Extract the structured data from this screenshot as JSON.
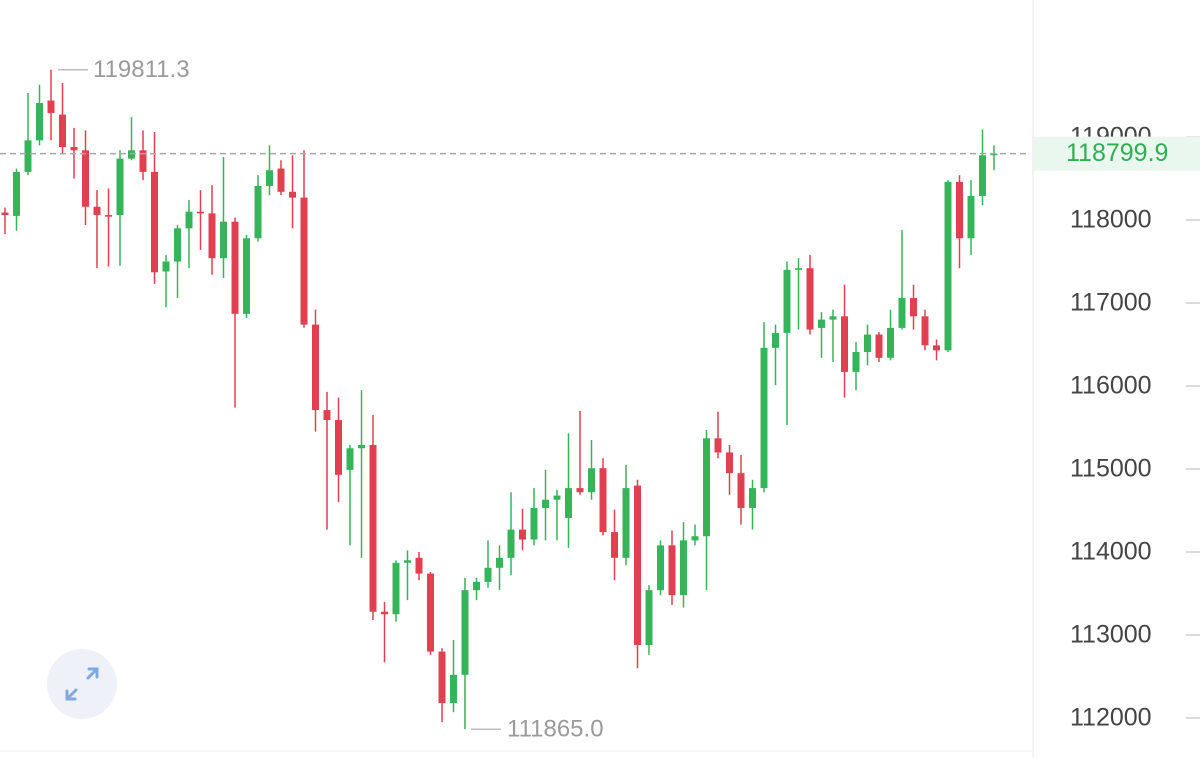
{
  "chart_data": {
    "type": "candlestick",
    "up_color": "#35b45a",
    "down_color": "#e0404f",
    "ylim": [
      111518,
      120651
    ],
    "yticks": [
      112000,
      113000,
      114000,
      115000,
      116000,
      117000,
      118000,
      119000
    ],
    "open": [
      118090,
      118050,
      118580,
      118960,
      119440,
      119270,
      118880,
      118840,
      118160,
      118060,
      118060,
      118740,
      118840,
      118580,
      117380,
      117500,
      117900,
      118100,
      118080,
      117540,
      117980,
      116870,
      117780,
      118410,
      118620,
      118340,
      118270,
      116740,
      115710,
      115590,
      114990,
      115250,
      115290,
      113280,
      113250,
      113870,
      113930,
      113740,
      112800,
      112180,
      112520,
      113540,
      113640,
      113810,
      113930,
      114270,
      114150,
      114530,
      114630,
      114410,
      114770,
      114720,
      115010,
      114240,
      113930,
      114800,
      112880,
      113540,
      114080,
      113480,
      114140,
      114190,
      115370,
      115200,
      114950,
      114530,
      114770,
      116460,
      116640,
      117400,
      117420,
      116700,
      116800,
      116840,
      116170,
      116410,
      116620,
      116340,
      116700,
      117060,
      116840,
      116490,
      116430,
      118460,
      117780,
      118290,
      118780
    ],
    "high": [
      118150,
      118620,
      119530,
      119630,
      119811.3,
      119650,
      119110,
      119080,
      118360,
      118380,
      118840,
      119240,
      119080,
      119060,
      117580,
      117940,
      118240,
      118360,
      118420,
      118760,
      118030,
      117820,
      118540,
      118900,
      118720,
      118780,
      118840,
      116920,
      115930,
      115860,
      115290,
      115950,
      115650,
      113400,
      113900,
      114020,
      114000,
      113760,
      112840,
      112940,
      113690,
      113690,
      114140,
      114080,
      114720,
      114520,
      114770,
      114990,
      114750,
      115430,
      115700,
      115350,
      115130,
      114510,
      115050,
      114870,
      113600,
      114140,
      114260,
      114360,
      114330,
      115470,
      115690,
      115290,
      115170,
      114870,
      116770,
      116740,
      117500,
      117540,
      117580,
      116890,
      116920,
      117220,
      116530,
      116740,
      116650,
      116920,
      117880,
      117220,
      116920,
      116560,
      118480,
      118540,
      118480,
      119090,
      118900
    ],
    "low": [
      117830,
      117870,
      118540,
      118900,
      118960,
      118790,
      118500,
      117940,
      117420,
      117440,
      117450,
      118720,
      118480,
      117230,
      116950,
      117060,
      117420,
      117640,
      117340,
      117300,
      115740,
      116820,
      117740,
      118300,
      118300,
      117900,
      116700,
      115450,
      114270,
      114600,
      114080,
      113930,
      113180,
      112670,
      113160,
      113420,
      113660,
      112760,
      111950,
      112070,
      111865,
      113420,
      113570,
      113540,
      113720,
      114020,
      114080,
      114140,
      114140,
      114050,
      114690,
      114630,
      114200,
      113660,
      113840,
      112600,
      112760,
      113480,
      113360,
      113330,
      114080,
      113540,
      115130,
      114690,
      114330,
      114270,
      114720,
      116010,
      115530,
      116680,
      116620,
      116340,
      116290,
      115860,
      115950,
      116250,
      116290,
      116310,
      116680,
      116680,
      116430,
      116310,
      116410,
      117420,
      117580,
      118180,
      118600
    ],
    "close": [
      118060,
      118580,
      118960,
      119410,
      119290,
      118880,
      118840,
      118160,
      118060,
      118040,
      118740,
      118840,
      118580,
      117370,
      117500,
      117900,
      118100,
      118080,
      117540,
      117980,
      116870,
      117780,
      118410,
      118600,
      118340,
      118270,
      116740,
      115710,
      115590,
      114930,
      115250,
      115290,
      113280,
      113250,
      113870,
      113900,
      113740,
      112800,
      112180,
      112520,
      113540,
      113640,
      113810,
      113930,
      114270,
      114150,
      114530,
      114630,
      114680,
      114770,
      114720,
      115010,
      114240,
      113930,
      114770,
      112880,
      113540,
      114080,
      113480,
      114140,
      114190,
      115370,
      115200,
      114950,
      114530,
      114770,
      116460,
      116640,
      117400,
      117420,
      116680,
      116800,
      116840,
      116170,
      116410,
      116620,
      116340,
      116700,
      117060,
      116840,
      116490,
      116430,
      118460,
      117780,
      118290,
      118780,
      118799.9
    ],
    "high_label": 119811.3,
    "low_label": {
      "value": 111865,
      "label": "111865.0"
    },
    "last_price": 118799.9,
    "last_price_color": "#2fae52"
  }
}
